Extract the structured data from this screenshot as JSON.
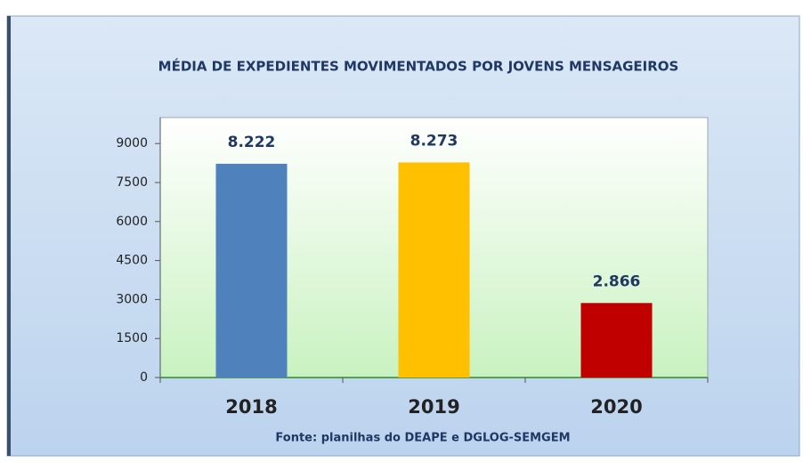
{
  "chart_data": {
    "type": "bar",
    "title": "MÉDIA DE EXPEDIENTES MOVIMENTADOS POR JOVENS MENSAGEIROS",
    "categories": [
      "2018",
      "2019",
      "2020"
    ],
    "values": [
      8222,
      8273,
      2866
    ],
    "value_labels": [
      "8.222",
      "8.273",
      "2.866"
    ],
    "colors": [
      "#4f81bd",
      "#ffc000",
      "#c00000"
    ],
    "ylim": [
      0,
      10000
    ],
    "yticks": [
      0,
      1500,
      3000,
      4500,
      6000,
      7500,
      9000
    ],
    "source": "Fonte: planilhas do DEAPE e DGLOG-SEMGEM"
  }
}
